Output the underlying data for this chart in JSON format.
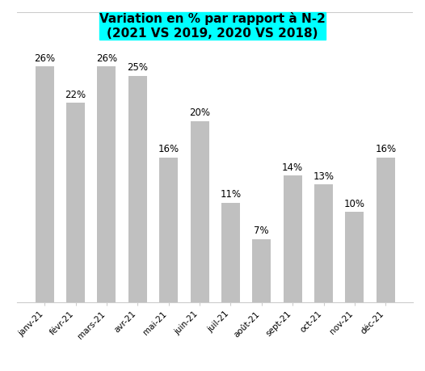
{
  "categories": [
    "janv-21",
    "févr-21",
    "mars-21",
    "avr-21",
    "mai-21",
    "juin-21",
    "juil-21",
    "août-21",
    "sept-21",
    "oct-21",
    "nov-21",
    "déc-21"
  ],
  "values": [
    26,
    22,
    26,
    25,
    16,
    20,
    11,
    7,
    14,
    13,
    10,
    16
  ],
  "bar_color": "#c0c0c0",
  "title_line1": "Variation en % par rapport à N-2",
  "title_line2": "(2021 VS 2019, 2020 VS 2018)",
  "title_bg_color": "#00ffff",
  "title_fontsize": 11,
  "label_fontsize": 8.5,
  "ylim": [
    0,
    32
  ],
  "bar_width": 0.6
}
